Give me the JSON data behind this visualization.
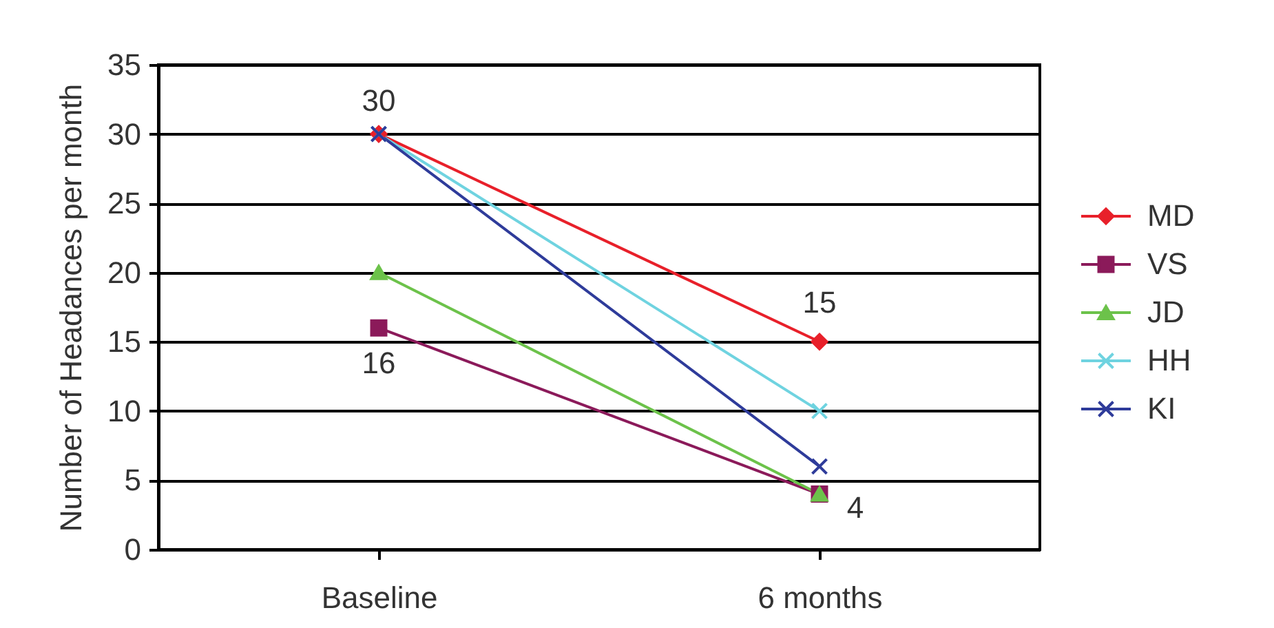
{
  "chart_data": {
    "type": "line",
    "line_style": "solid",
    "ylabel": "Number of Headances per month",
    "categories": [
      "Baseline",
      "6 months"
    ],
    "series": [
      {
        "name": "MD",
        "color": "#e8202a",
        "marker": "diamond",
        "values": [
          30,
          15
        ]
      },
      {
        "name": "VS",
        "color": "#8b1a5a",
        "marker": "square",
        "values": [
          16,
          4
        ]
      },
      {
        "name": "JD",
        "color": "#6cc24a",
        "marker": "triangle",
        "values": [
          20,
          4
        ]
      },
      {
        "name": "HH",
        "color": "#6fd3e0",
        "marker": "cross",
        "values": [
          30,
          10
        ]
      },
      {
        "name": "KI",
        "color": "#2e3b9a",
        "marker": "cross",
        "values": [
          30,
          6
        ]
      }
    ],
    "ylim": [
      0,
      35
    ],
    "yticks": [
      0,
      5,
      10,
      15,
      20,
      25,
      30,
      35
    ],
    "grid": "y",
    "legend": "right",
    "annotations": [
      {
        "text": "30",
        "x": "Baseline",
        "y": 30
      },
      {
        "text": "16",
        "x": "Baseline",
        "y": 16
      },
      {
        "text": "15",
        "x": "6 months",
        "y": 15
      },
      {
        "text": "4",
        "x": "6 months",
        "y": 4
      }
    ]
  }
}
